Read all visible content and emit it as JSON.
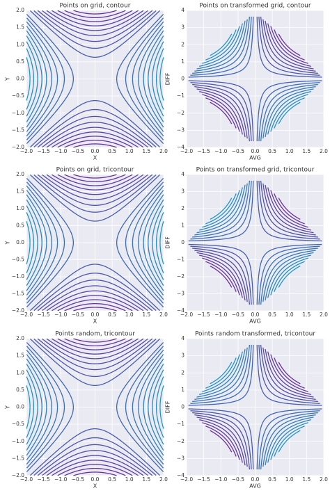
{
  "chart_data": [
    {
      "type": "contour",
      "title": "Points on grid, contour",
      "xlabel": "X",
      "ylabel": "Y",
      "xlim": [
        -2,
        2
      ],
      "ylim": [
        -2,
        2
      ],
      "xticks": [
        {
          "value": -2,
          "label": "−2.0"
        },
        {
          "value": -1.5,
          "label": "−1.5"
        },
        {
          "value": -1,
          "label": "−1.0"
        },
        {
          "value": -0.5,
          "label": "−0.5"
        },
        {
          "value": 0,
          "label": "0.0"
        },
        {
          "value": 0.5,
          "label": "0.5"
        },
        {
          "value": 1,
          "label": "1.0"
        },
        {
          "value": 1.5,
          "label": "1.5"
        },
        {
          "value": 2,
          "label": "2.0"
        }
      ],
      "yticks": [
        {
          "value": -2,
          "label": "−2.0"
        },
        {
          "value": -1.5,
          "label": "−1.5"
        },
        {
          "value": -1,
          "label": "−1.0"
        },
        {
          "value": -0.5,
          "label": "−0.5"
        },
        {
          "value": 0,
          "label": "0.0"
        },
        {
          "value": 0.5,
          "label": "0.5"
        },
        {
          "value": 1,
          "label": "1.0"
        },
        {
          "value": 1.5,
          "label": "1.5"
        },
        {
          "value": 2,
          "label": "2.0"
        }
      ],
      "levels": [
        -3.6,
        -3.2,
        -2.8,
        -2.4,
        -2,
        -1.6,
        -1.2,
        -0.8,
        -0.4,
        0.4,
        0.8,
        1.2,
        1.6,
        2,
        2.4,
        2.8,
        3.2,
        3.6
      ],
      "colors": [
        "#6b2d9b",
        "#1e96c8"
      ],
      "grid": true
    },
    {
      "type": "contour",
      "title": "Points on transformed grid, contour",
      "xlabel": "AVG",
      "ylabel": "DIFF",
      "xlim": [
        -2,
        2
      ],
      "ylim": [
        -4,
        4
      ],
      "xticks": [
        {
          "value": -2,
          "label": "−2.0"
        },
        {
          "value": -1.5,
          "label": "−1.5"
        },
        {
          "value": -1,
          "label": "−1.0"
        },
        {
          "value": -0.5,
          "label": "−0.5"
        },
        {
          "value": 0,
          "label": "0.0"
        },
        {
          "value": 0.5,
          "label": "0.5"
        },
        {
          "value": 1,
          "label": "1.0"
        },
        {
          "value": 1.5,
          "label": "1.5"
        },
        {
          "value": 2,
          "label": "2.0"
        }
      ],
      "yticks": [
        {
          "value": -4,
          "label": "−4"
        },
        {
          "value": -3,
          "label": "−3"
        },
        {
          "value": -2,
          "label": "−2"
        },
        {
          "value": -1,
          "label": "−1"
        },
        0,
        1,
        2,
        3,
        4
      ],
      "levels": [
        -3.6,
        -3.2,
        -2.8,
        -2.4,
        -2,
        -1.6,
        -1.2,
        -0.8,
        -0.4,
        0.4,
        0.8,
        1.2,
        1.6,
        2,
        2.4,
        2.8,
        3.2,
        3.6
      ],
      "colors": [
        "#6b2d9b",
        "#1e96c8"
      ],
      "grid": true
    },
    {
      "type": "contour",
      "title": "Points on grid, tricontour",
      "xlabel": "X",
      "ylabel": "Y",
      "xlim": [
        -2,
        2
      ],
      "ylim": [
        -2,
        2
      ],
      "xticks": [
        {
          "value": -2,
          "label": "−2.0"
        },
        {
          "value": -1.5,
          "label": "−1.5"
        },
        {
          "value": -1,
          "label": "−1.0"
        },
        {
          "value": -0.5,
          "label": "−0.5"
        },
        {
          "value": 0,
          "label": "0.0"
        },
        {
          "value": 0.5,
          "label": "0.5"
        },
        {
          "value": 1,
          "label": "1.0"
        },
        {
          "value": 1.5,
          "label": "1.5"
        },
        {
          "value": 2,
          "label": "2.0"
        }
      ],
      "yticks": [
        {
          "value": -2,
          "label": "−2.0"
        },
        {
          "value": -1.5,
          "label": "−1.5"
        },
        {
          "value": -1,
          "label": "−1.0"
        },
        {
          "value": -0.5,
          "label": "−0.5"
        },
        {
          "value": 0,
          "label": "0.0"
        },
        {
          "value": 0.5,
          "label": "0.5"
        },
        {
          "value": 1,
          "label": "1.0"
        },
        {
          "value": 1.5,
          "label": "1.5"
        },
        {
          "value": 2,
          "label": "2.0"
        }
      ],
      "levels": [
        -3.6,
        -3.2,
        -2.8,
        -2.4,
        -2,
        -1.6,
        -1.2,
        -0.8,
        -0.4,
        0.4,
        0.8,
        1.2,
        1.6,
        2,
        2.4,
        2.8,
        3.2,
        3.6
      ],
      "colors": [
        "#6b2d9b",
        "#1e96c8"
      ],
      "grid": true
    },
    {
      "type": "contour",
      "title": "Points on transformed grid, tricontour",
      "xlabel": "AVG",
      "ylabel": "DIFF",
      "xlim": [
        -2,
        2
      ],
      "ylim": [
        -4,
        4
      ],
      "xticks": [
        {
          "value": -2,
          "label": "−2.0"
        },
        {
          "value": -1.5,
          "label": "−1.5"
        },
        {
          "value": -1,
          "label": "−1.0"
        },
        {
          "value": -0.5,
          "label": "−0.5"
        },
        {
          "value": 0,
          "label": "0.0"
        },
        {
          "value": 0.5,
          "label": "0.5"
        },
        {
          "value": 1,
          "label": "1.0"
        },
        {
          "value": 1.5,
          "label": "1.5"
        },
        {
          "value": 2,
          "label": "2.0"
        }
      ],
      "yticks": [
        {
          "value": -4,
          "label": "−4"
        },
        {
          "value": -3,
          "label": "−3"
        },
        {
          "value": -2,
          "label": "−2"
        },
        {
          "value": -1,
          "label": "−1"
        },
        0,
        1,
        2,
        3,
        4
      ],
      "levels": [
        -3.6,
        -3.2,
        -2.8,
        -2.4,
        -2,
        -1.6,
        -1.2,
        -0.8,
        -0.4,
        0.4,
        0.8,
        1.2,
        1.6,
        2,
        2.4,
        2.8,
        3.2,
        3.6
      ],
      "colors": [
        "#6b2d9b",
        "#1e96c8"
      ],
      "grid": true
    },
    {
      "type": "contour",
      "title": "Points random, tricontour",
      "xlabel": "X",
      "ylabel": "Y",
      "xlim": [
        -2,
        2
      ],
      "ylim": [
        -2,
        2
      ],
      "xticks": [
        {
          "value": -2,
          "label": "−2.0"
        },
        {
          "value": -1.5,
          "label": "−1.5"
        },
        {
          "value": -1,
          "label": "−1.0"
        },
        {
          "value": -0.5,
          "label": "−0.5"
        },
        {
          "value": 0,
          "label": "0.0"
        },
        {
          "value": 0.5,
          "label": "0.5"
        },
        {
          "value": 1,
          "label": "1.0"
        },
        {
          "value": 1.5,
          "label": "1.5"
        },
        {
          "value": 2,
          "label": "2.0"
        }
      ],
      "yticks": [
        {
          "value": -2,
          "label": "−2.0"
        },
        {
          "value": -1.5,
          "label": "−1.5"
        },
        {
          "value": -1,
          "label": "−1.0"
        },
        {
          "value": -0.5,
          "label": "−0.5"
        },
        {
          "value": 0,
          "label": "0.0"
        },
        {
          "value": 0.5,
          "label": "0.5"
        },
        {
          "value": 1,
          "label": "1.0"
        },
        {
          "value": 1.5,
          "label": "1.5"
        },
        {
          "value": 2,
          "label": "2.0"
        }
      ],
      "levels": [
        -3.6,
        -3.2,
        -2.8,
        -2.4,
        -2,
        -1.6,
        -1.2,
        -0.8,
        -0.4,
        0.4,
        0.8,
        1.2,
        1.6,
        2,
        2.4,
        2.8,
        3.2,
        3.6
      ],
      "colors": [
        "#6b2d9b",
        "#1e96c8"
      ],
      "grid": true
    },
    {
      "type": "contour",
      "title": "Points random transformed, tricontour",
      "xlabel": "AVG",
      "ylabel": "DIFF",
      "xlim": [
        -2,
        2
      ],
      "ylim": [
        -4,
        4
      ],
      "xticks": [
        {
          "value": -2,
          "label": "−2.0"
        },
        {
          "value": -1.5,
          "label": "−1.5"
        },
        {
          "value": -1,
          "label": "−1.0"
        },
        {
          "value": -0.5,
          "label": "−0.5"
        },
        {
          "value": 0,
          "label": "0.0"
        },
        {
          "value": 0.5,
          "label": "0.5"
        },
        {
          "value": 1,
          "label": "1.0"
        },
        {
          "value": 1.5,
          "label": "1.5"
        },
        {
          "value": 2,
          "label": "2.0"
        }
      ],
      "yticks": [
        {
          "value": -4,
          "label": "−4"
        },
        {
          "value": -3,
          "label": "−3"
        },
        {
          "value": -2,
          "label": "−2"
        },
        {
          "value": -1,
          "label": "−1"
        },
        0,
        1,
        2,
        3,
        4
      ],
      "levels": [
        -3.6,
        -3.2,
        -2.8,
        -2.4,
        -2,
        -1.6,
        -1.2,
        -0.8,
        -0.4,
        0.4,
        0.8,
        1.2,
        1.6,
        2,
        2.4,
        2.8,
        3.2,
        3.6
      ],
      "colors": [
        "#6b2d9b",
        "#1e96c8"
      ],
      "grid": true
    }
  ]
}
